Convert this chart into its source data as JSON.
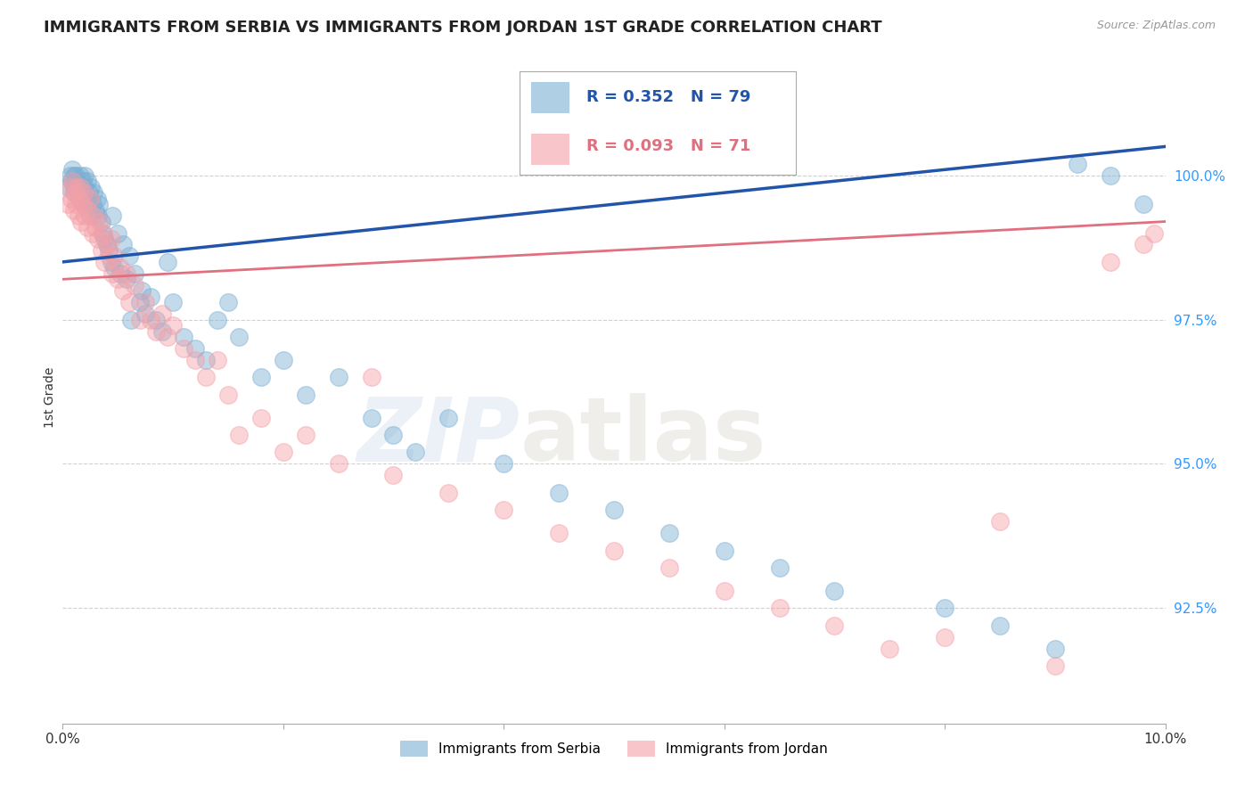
{
  "title": "IMMIGRANTS FROM SERBIA VS IMMIGRANTS FROM JORDAN 1ST GRADE CORRELATION CHART",
  "source": "Source: ZipAtlas.com",
  "ylabel": "1st Grade",
  "xlim": [
    0.0,
    10.0
  ],
  "ylim": [
    90.5,
    101.8
  ],
  "yticks": [
    92.5,
    95.0,
    97.5,
    100.0
  ],
  "ytick_labels": [
    "92.5%",
    "95.0%",
    "97.5%",
    "100.0%"
  ],
  "serbia_color": "#7BAFD4",
  "jordan_color": "#F4A0A8",
  "serbia_line_color": "#2255AA",
  "jordan_line_color": "#E07080",
  "serbia_R": 0.352,
  "serbia_N": 79,
  "jordan_R": 0.093,
  "jordan_N": 71,
  "serbia_trend_x": [
    0.0,
    10.0
  ],
  "serbia_trend_y": [
    98.5,
    100.5
  ],
  "jordan_trend_x": [
    0.0,
    10.0
  ],
  "jordan_trend_y": [
    98.2,
    99.2
  ],
  "serbia_scatter_x": [
    0.05,
    0.07,
    0.08,
    0.09,
    0.1,
    0.1,
    0.11,
    0.12,
    0.13,
    0.14,
    0.15,
    0.16,
    0.17,
    0.18,
    0.19,
    0.2,
    0.2,
    0.21,
    0.22,
    0.23,
    0.24,
    0.25,
    0.26,
    0.27,
    0.28,
    0.3,
    0.31,
    0.32,
    0.33,
    0.35,
    0.36,
    0.38,
    0.4,
    0.42,
    0.44,
    0.45,
    0.47,
    0.5,
    0.52,
    0.55,
    0.58,
    0.6,
    0.62,
    0.65,
    0.7,
    0.72,
    0.75,
    0.8,
    0.85,
    0.9,
    0.95,
    1.0,
    1.1,
    1.2,
    1.3,
    1.4,
    1.5,
    1.6,
    1.8,
    2.0,
    2.2,
    2.5,
    2.8,
    3.0,
    3.2,
    3.5,
    4.0,
    4.5,
    5.0,
    5.5,
    6.0,
    6.5,
    7.0,
    8.0,
    8.5,
    9.0,
    9.2,
    9.5,
    9.8
  ],
  "serbia_scatter_y": [
    99.8,
    100.0,
    99.9,
    100.1,
    99.7,
    100.0,
    99.8,
    100.0,
    99.9,
    99.8,
    99.6,
    100.0,
    99.7,
    99.9,
    99.5,
    99.8,
    100.0,
    99.6,
    99.9,
    99.5,
    99.7,
    99.3,
    99.8,
    99.5,
    99.7,
    99.4,
    99.6,
    99.3,
    99.5,
    99.2,
    99.0,
    98.9,
    98.8,
    98.7,
    98.5,
    99.3,
    98.4,
    99.0,
    98.3,
    98.8,
    98.2,
    98.6,
    97.5,
    98.3,
    97.8,
    98.0,
    97.6,
    97.9,
    97.5,
    97.3,
    98.5,
    97.8,
    97.2,
    97.0,
    96.8,
    97.5,
    97.8,
    97.2,
    96.5,
    96.8,
    96.2,
    96.5,
    95.8,
    95.5,
    95.2,
    95.8,
    95.0,
    94.5,
    94.2,
    93.8,
    93.5,
    93.2,
    92.8,
    92.5,
    92.2,
    91.8,
    100.2,
    100.0,
    99.5
  ],
  "jordan_scatter_x": [
    0.05,
    0.07,
    0.08,
    0.09,
    0.1,
    0.11,
    0.12,
    0.13,
    0.14,
    0.15,
    0.16,
    0.17,
    0.18,
    0.19,
    0.2,
    0.22,
    0.23,
    0.25,
    0.27,
    0.28,
    0.3,
    0.32,
    0.34,
    0.35,
    0.37,
    0.38,
    0.4,
    0.42,
    0.44,
    0.45,
    0.47,
    0.5,
    0.52,
    0.55,
    0.58,
    0.6,
    0.65,
    0.7,
    0.75,
    0.8,
    0.85,
    0.9,
    0.95,
    1.0,
    1.1,
    1.2,
    1.3,
    1.4,
    1.5,
    1.6,
    1.8,
    2.0,
    2.2,
    2.5,
    2.8,
    3.0,
    3.5,
    4.0,
    4.5,
    5.0,
    5.5,
    6.0,
    6.5,
    7.0,
    7.5,
    8.0,
    8.5,
    9.0,
    9.5,
    9.8,
    9.9
  ],
  "jordan_scatter_y": [
    99.5,
    99.8,
    99.6,
    99.9,
    99.4,
    99.7,
    99.5,
    99.8,
    99.3,
    99.6,
    99.8,
    99.2,
    99.5,
    99.7,
    99.3,
    99.1,
    99.4,
    99.6,
    99.0,
    99.3,
    99.1,
    98.9,
    99.2,
    98.7,
    99.0,
    98.5,
    98.8,
    98.6,
    98.9,
    98.3,
    98.6,
    98.2,
    98.4,
    98.0,
    98.3,
    97.8,
    98.1,
    97.5,
    97.8,
    97.5,
    97.3,
    97.6,
    97.2,
    97.4,
    97.0,
    96.8,
    96.5,
    96.8,
    96.2,
    95.5,
    95.8,
    95.2,
    95.5,
    95.0,
    96.5,
    94.8,
    94.5,
    94.2,
    93.8,
    93.5,
    93.2,
    92.8,
    92.5,
    92.2,
    91.8,
    92.0,
    94.0,
    91.5,
    98.5,
    98.8,
    99.0
  ],
  "watermark_zip": "ZIP",
  "watermark_atlas": "atlas",
  "background_color": "#FFFFFF",
  "grid_color": "#CCCCCC"
}
